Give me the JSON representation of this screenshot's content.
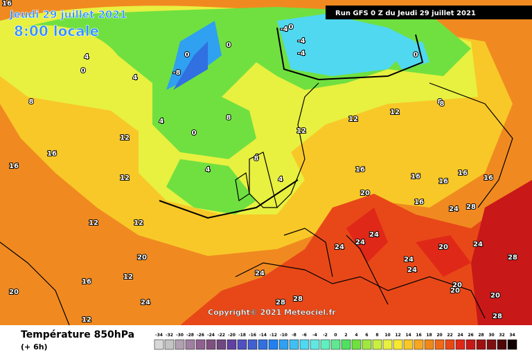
{
  "header": {
    "date": "Jeudi 29 juillet 2021",
    "time": "8:00 locale",
    "run": "Run GFS 0 Z du Jeudi 29 juillet 2021"
  },
  "copyright": "Copyright© 2021 Meteociel.fr",
  "legend": {
    "title": "Température 850hPa",
    "step": "(+ 6h)",
    "labels": [
      "-34",
      "-32",
      "-30",
      "-28",
      "-26",
      "-24",
      "-22",
      "-20",
      "-18",
      "-16",
      "-14",
      "-12",
      "-10",
      "-8",
      "-6",
      "-4",
      "-2",
      "0",
      "2",
      "4",
      "6",
      "8",
      "10",
      "12",
      "14",
      "16",
      "18",
      "20",
      "22",
      "24",
      "26",
      "28",
      "30",
      "32",
      "34"
    ],
    "colors": [
      "#d8d8d8",
      "#c4c4c4",
      "#b0a0b0",
      "#a080a0",
      "#906090",
      "#805080",
      "#704880",
      "#6040a0",
      "#5050c0",
      "#4060d0",
      "#3070e0",
      "#2080f0",
      "#30a0f0",
      "#40c0f0",
      "#50d8f0",
      "#60e8e0",
      "#60f0c0",
      "#60e890",
      "#50e060",
      "#70e040",
      "#a0e840",
      "#c8f040",
      "#e8f040",
      "#f8e830",
      "#f8c828",
      "#f8a820",
      "#f08818",
      "#f06818",
      "#e84818",
      "#e02818",
      "#c81818",
      "#a01010",
      "#801010",
      "#500808",
      "#100000"
    ]
  },
  "map_labels": [
    "16",
    "4",
    "0",
    "-8",
    "0",
    "4",
    "0",
    "-4",
    "-4",
    "-4",
    "0",
    "0",
    "8",
    "4",
    "0",
    "8",
    "4",
    "12",
    "12",
    "12",
    "16",
    "12",
    "16",
    "4",
    "8",
    "12",
    "4",
    "16",
    "16",
    "20",
    "24",
    "24",
    "24",
    "24",
    "16",
    "16",
    "16",
    "24",
    "28",
    "20",
    "24",
    "28",
    "20",
    "20",
    "24",
    "28",
    "12",
    "12",
    "12",
    "16",
    "20",
    "24",
    "28",
    "28",
    "12",
    "8",
    "8",
    "16",
    "20",
    "20",
    "24"
  ]
}
